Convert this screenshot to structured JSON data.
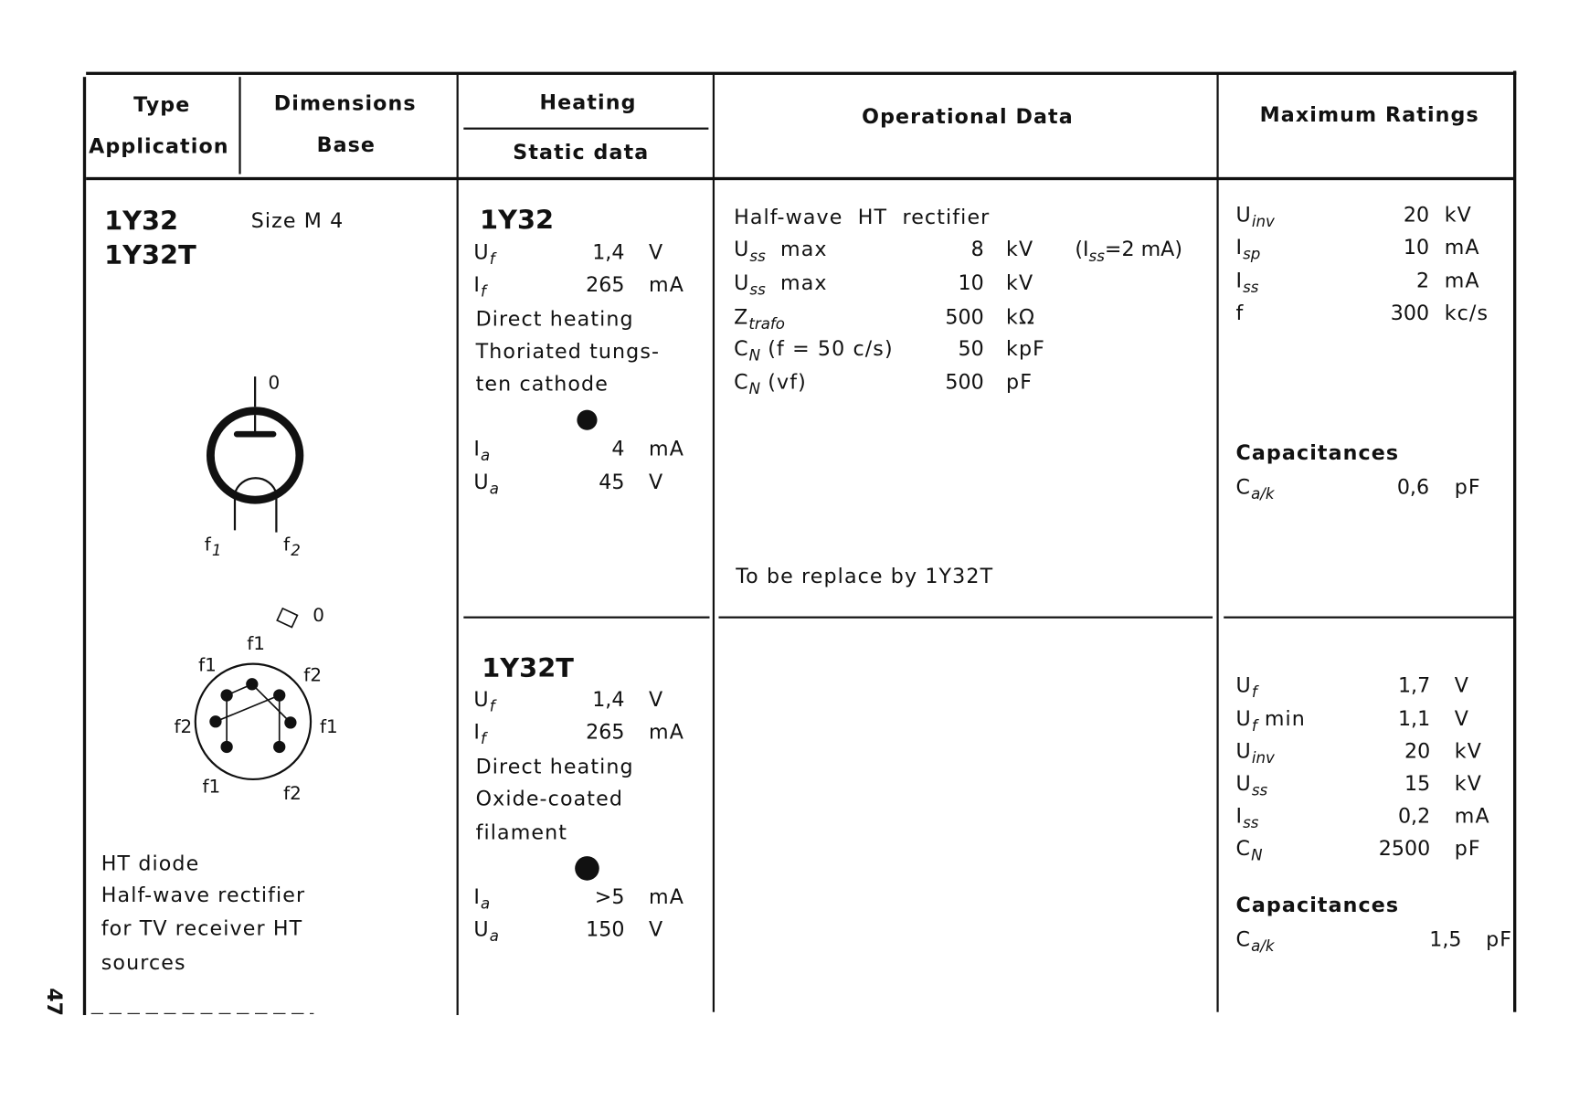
{
  "header": {
    "type": "Type",
    "application": "Application",
    "dimensions": "Dimensions",
    "base": "Base",
    "heating": "Heating",
    "static_data": "Static data",
    "operational_data": "Operational Data",
    "maximum_ratings": "Maximum Ratings"
  },
  "type_col": {
    "types": [
      "1Y32",
      "1Y32T"
    ],
    "size": "Size M 4",
    "application_lines": [
      "HT diode",
      "Half-wave rectifier",
      "for TV receiver HT",
      "sources"
    ],
    "symbol_labels": {
      "anode": "0",
      "f1": "f",
      "f1_sub": "1",
      "f2": "f",
      "f2_sub": "2"
    },
    "base_labels": {
      "anode": "0",
      "pins": [
        "f1",
        "f1",
        "f2",
        "f2",
        "f1",
        "f1",
        "f2"
      ]
    }
  },
  "heating_1y32": {
    "title": "1Y32",
    "rows": [
      {
        "label": "U",
        "sub": "f",
        "value": "1,4",
        "unit": "V"
      },
      {
        "label": "I",
        "sub": "f",
        "value": "265",
        "unit": "mA"
      }
    ],
    "text": [
      "Direct heating",
      "Thoriated tungs-",
      "ten cathode"
    ],
    "static": [
      {
        "label": "I",
        "sub": "a",
        "value": "4",
        "unit": "mA"
      },
      {
        "label": "U",
        "sub": "a",
        "value": "45",
        "unit": "V"
      }
    ]
  },
  "heating_1y32t": {
    "title": "1Y32T",
    "rows": [
      {
        "label": "U",
        "sub": "f",
        "value": "1,4",
        "unit": "V"
      },
      {
        "label": "I",
        "sub": "f",
        "value": "265",
        "unit": "mA"
      }
    ],
    "text": [
      "Direct heating",
      "Oxide-coated",
      "filament"
    ],
    "static": [
      {
        "label": "I",
        "sub": "a",
        "value": ">5",
        "unit": "mA"
      },
      {
        "label": "U",
        "sub": "a",
        "value": "150",
        "unit": "V"
      }
    ]
  },
  "operational": {
    "heading": "Half-wave  HT  rectifier",
    "rows": [
      {
        "label": "U",
        "sub": "ss",
        "suffix": "  max",
        "value": "8",
        "unit": "kV",
        "note": "(I",
        "note_sub": "ss",
        "note_tail": "=2 mA)"
      },
      {
        "label": "U",
        "sub": "ss",
        "suffix": "  max",
        "value": "10",
        "unit": "kV"
      },
      {
        "label": "Z",
        "sub": "trafo",
        "suffix": "",
        "value": "500",
        "unit": "kΩ"
      },
      {
        "label": "C",
        "sub": "N",
        "suffix": " (f = 50 c/s)",
        "value": "50",
        "unit": "kpF"
      },
      {
        "label": "C",
        "sub": "N",
        "suffix": " (vf)",
        "value": "500",
        "unit": "pF"
      }
    ],
    "replace_note": "To be replace by 1Y32T"
  },
  "max_1y32": {
    "rows": [
      {
        "label": "U",
        "sub": "inv",
        "value": "20",
        "unit": "kV"
      },
      {
        "label": "I",
        "sub": "sp",
        "value": "10",
        "unit": "mA"
      },
      {
        "label": "I",
        "sub": "ss",
        "value": "2",
        "unit": "mA"
      },
      {
        "label": "f",
        "sub": "",
        "value": "300",
        "unit": "kc/s"
      }
    ],
    "cap_heading": "Capacitances",
    "cap": {
      "label": "C",
      "sub": "a/k",
      "value": "0,6",
      "unit": "pF"
    }
  },
  "max_1y32t": {
    "rows": [
      {
        "label": "U",
        "sub": "f",
        "value": "1,7",
        "unit": "V"
      },
      {
        "label": "U",
        "sub": "f",
        "suffix": " min",
        "value": "1,1",
        "unit": "V"
      },
      {
        "label": "U",
        "sub": "inv",
        "value": "20",
        "unit": "kV"
      },
      {
        "label": "U",
        "sub": "ss",
        "value": "15",
        "unit": "kV"
      },
      {
        "label": "I",
        "sub": "ss",
        "value": "0,2",
        "unit": "mA"
      },
      {
        "label": "C",
        "sub": "N",
        "value": "2500",
        "unit": "pF"
      }
    ],
    "cap_heading": "Capacitances",
    "cap": {
      "label": "C",
      "sub": "a/k",
      "value": "1,5",
      "unit": "pF"
    }
  },
  "page_number": "47"
}
